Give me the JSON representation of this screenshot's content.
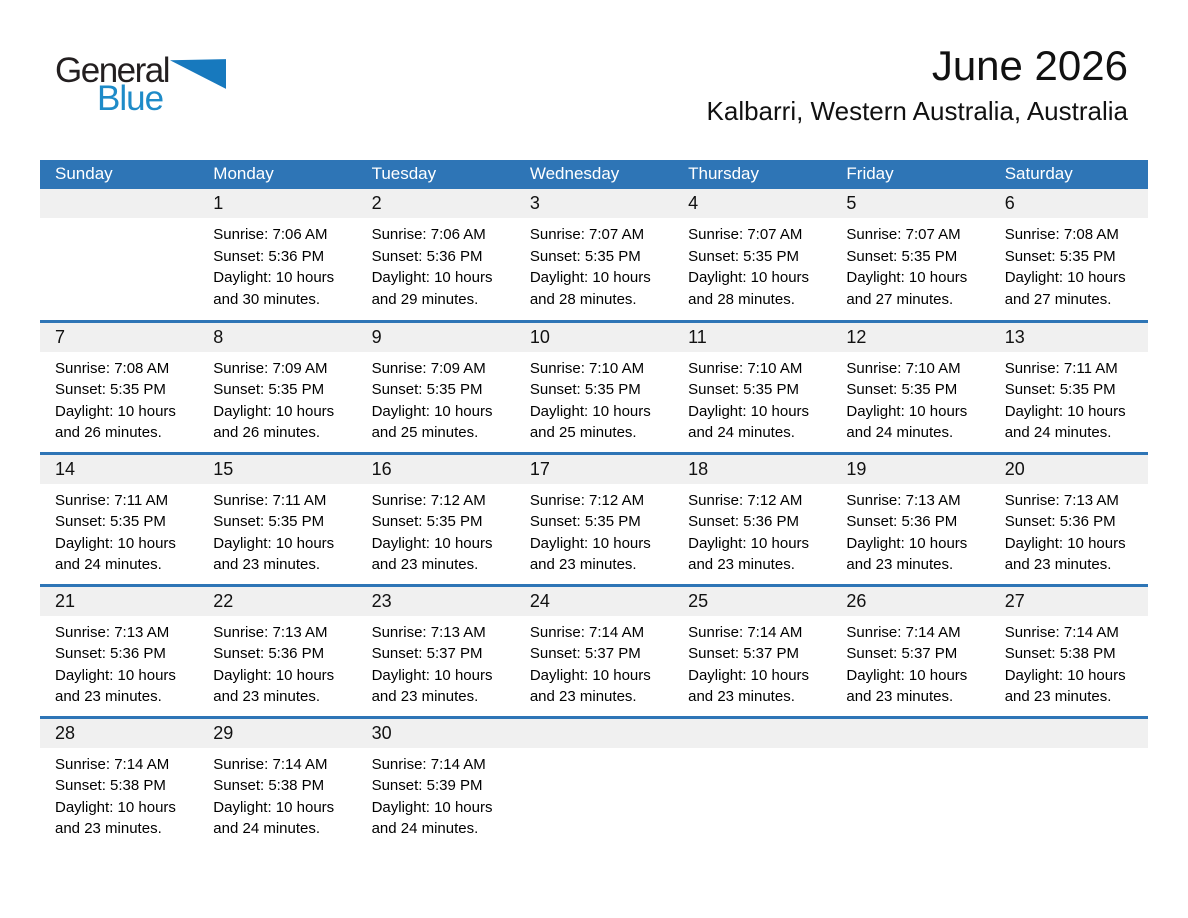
{
  "logo": {
    "general": "General",
    "blue": "Blue"
  },
  "header": {
    "month_year": "June 2026",
    "location": "Kalbarri, Western Australia, Australia"
  },
  "colors": {
    "header_bg": "#2E75B6",
    "divider": "#2E75B6",
    "band_bg": "#F0F0F0",
    "logo_blue": "#1E8BC8",
    "logo_triangle": "#1779BE"
  },
  "weekdays": [
    "Sunday",
    "Monday",
    "Tuesday",
    "Wednesday",
    "Thursday",
    "Friday",
    "Saturday"
  ],
  "weeks": [
    [
      {
        "day": "",
        "sunrise": "",
        "sunset": "",
        "daylight": ""
      },
      {
        "day": "1",
        "sunrise": "Sunrise: 7:06 AM",
        "sunset": "Sunset: 5:36 PM",
        "daylight": "Daylight: 10 hours and 30 minutes."
      },
      {
        "day": "2",
        "sunrise": "Sunrise: 7:06 AM",
        "sunset": "Sunset: 5:36 PM",
        "daylight": "Daylight: 10 hours and 29 minutes."
      },
      {
        "day": "3",
        "sunrise": "Sunrise: 7:07 AM",
        "sunset": "Sunset: 5:35 PM",
        "daylight": "Daylight: 10 hours and 28 minutes."
      },
      {
        "day": "4",
        "sunrise": "Sunrise: 7:07 AM",
        "sunset": "Sunset: 5:35 PM",
        "daylight": "Daylight: 10 hours and 28 minutes."
      },
      {
        "day": "5",
        "sunrise": "Sunrise: 7:07 AM",
        "sunset": "Sunset: 5:35 PM",
        "daylight": "Daylight: 10 hours and 27 minutes."
      },
      {
        "day": "6",
        "sunrise": "Sunrise: 7:08 AM",
        "sunset": "Sunset: 5:35 PM",
        "daylight": "Daylight: 10 hours and 27 minutes."
      }
    ],
    [
      {
        "day": "7",
        "sunrise": "Sunrise: 7:08 AM",
        "sunset": "Sunset: 5:35 PM",
        "daylight": "Daylight: 10 hours and 26 minutes."
      },
      {
        "day": "8",
        "sunrise": "Sunrise: 7:09 AM",
        "sunset": "Sunset: 5:35 PM",
        "daylight": "Daylight: 10 hours and 26 minutes."
      },
      {
        "day": "9",
        "sunrise": "Sunrise: 7:09 AM",
        "sunset": "Sunset: 5:35 PM",
        "daylight": "Daylight: 10 hours and 25 minutes."
      },
      {
        "day": "10",
        "sunrise": "Sunrise: 7:10 AM",
        "sunset": "Sunset: 5:35 PM",
        "daylight": "Daylight: 10 hours and 25 minutes."
      },
      {
        "day": "11",
        "sunrise": "Sunrise: 7:10 AM",
        "sunset": "Sunset: 5:35 PM",
        "daylight": "Daylight: 10 hours and 24 minutes."
      },
      {
        "day": "12",
        "sunrise": "Sunrise: 7:10 AM",
        "sunset": "Sunset: 5:35 PM",
        "daylight": "Daylight: 10 hours and 24 minutes."
      },
      {
        "day": "13",
        "sunrise": "Sunrise: 7:11 AM",
        "sunset": "Sunset: 5:35 PM",
        "daylight": "Daylight: 10 hours and 24 minutes."
      }
    ],
    [
      {
        "day": "14",
        "sunrise": "Sunrise: 7:11 AM",
        "sunset": "Sunset: 5:35 PM",
        "daylight": "Daylight: 10 hours and 24 minutes."
      },
      {
        "day": "15",
        "sunrise": "Sunrise: 7:11 AM",
        "sunset": "Sunset: 5:35 PM",
        "daylight": "Daylight: 10 hours and 23 minutes."
      },
      {
        "day": "16",
        "sunrise": "Sunrise: 7:12 AM",
        "sunset": "Sunset: 5:35 PM",
        "daylight": "Daylight: 10 hours and 23 minutes."
      },
      {
        "day": "17",
        "sunrise": "Sunrise: 7:12 AM",
        "sunset": "Sunset: 5:35 PM",
        "daylight": "Daylight: 10 hours and 23 minutes."
      },
      {
        "day": "18",
        "sunrise": "Sunrise: 7:12 AM",
        "sunset": "Sunset: 5:36 PM",
        "daylight": "Daylight: 10 hours and 23 minutes."
      },
      {
        "day": "19",
        "sunrise": "Sunrise: 7:13 AM",
        "sunset": "Sunset: 5:36 PM",
        "daylight": "Daylight: 10 hours and 23 minutes."
      },
      {
        "day": "20",
        "sunrise": "Sunrise: 7:13 AM",
        "sunset": "Sunset: 5:36 PM",
        "daylight": "Daylight: 10 hours and 23 minutes."
      }
    ],
    [
      {
        "day": "21",
        "sunrise": "Sunrise: 7:13 AM",
        "sunset": "Sunset: 5:36 PM",
        "daylight": "Daylight: 10 hours and 23 minutes."
      },
      {
        "day": "22",
        "sunrise": "Sunrise: 7:13 AM",
        "sunset": "Sunset: 5:36 PM",
        "daylight": "Daylight: 10 hours and 23 minutes."
      },
      {
        "day": "23",
        "sunrise": "Sunrise: 7:13 AM",
        "sunset": "Sunset: 5:37 PM",
        "daylight": "Daylight: 10 hours and 23 minutes."
      },
      {
        "day": "24",
        "sunrise": "Sunrise: 7:14 AM",
        "sunset": "Sunset: 5:37 PM",
        "daylight": "Daylight: 10 hours and 23 minutes."
      },
      {
        "day": "25",
        "sunrise": "Sunrise: 7:14 AM",
        "sunset": "Sunset: 5:37 PM",
        "daylight": "Daylight: 10 hours and 23 minutes."
      },
      {
        "day": "26",
        "sunrise": "Sunrise: 7:14 AM",
        "sunset": "Sunset: 5:37 PM",
        "daylight": "Daylight: 10 hours and 23 minutes."
      },
      {
        "day": "27",
        "sunrise": "Sunrise: 7:14 AM",
        "sunset": "Sunset: 5:38 PM",
        "daylight": "Daylight: 10 hours and 23 minutes."
      }
    ],
    [
      {
        "day": "28",
        "sunrise": "Sunrise: 7:14 AM",
        "sunset": "Sunset: 5:38 PM",
        "daylight": "Daylight: 10 hours and 23 minutes."
      },
      {
        "day": "29",
        "sunrise": "Sunrise: 7:14 AM",
        "sunset": "Sunset: 5:38 PM",
        "daylight": "Daylight: 10 hours and 24 minutes."
      },
      {
        "day": "30",
        "sunrise": "Sunrise: 7:14 AM",
        "sunset": "Sunset: 5:39 PM",
        "daylight": "Daylight: 10 hours and 24 minutes."
      },
      {
        "day": "",
        "sunrise": "",
        "sunset": "",
        "daylight": ""
      },
      {
        "day": "",
        "sunrise": "",
        "sunset": "",
        "daylight": ""
      },
      {
        "day": "",
        "sunrise": "",
        "sunset": "",
        "daylight": ""
      },
      {
        "day": "",
        "sunrise": "",
        "sunset": "",
        "daylight": ""
      }
    ]
  ]
}
